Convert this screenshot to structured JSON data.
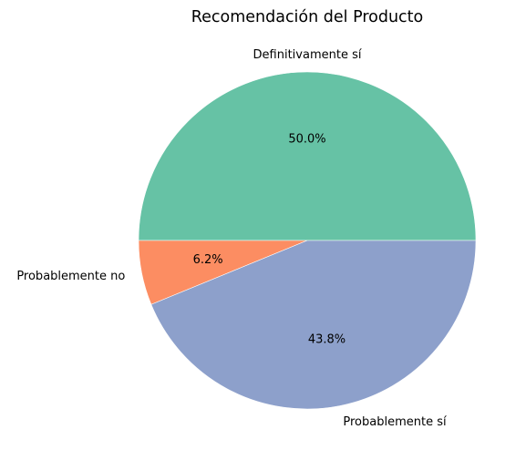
{
  "chart_data": {
    "type": "pie",
    "title": "Recomendación del Producto",
    "categories": [
      "Definitivamente sí",
      "Probablemente no",
      "Probablemente sí"
    ],
    "values": [
      50.0,
      6.2,
      43.8
    ],
    "value_labels": [
      "50.0%",
      "6.2%",
      "43.8%"
    ],
    "colors": [
      "#66c2a5",
      "#fc8d62",
      "#8da0cb"
    ],
    "start_angle_deg": 0,
    "direction": "counterclockwise",
    "legend": "none"
  }
}
